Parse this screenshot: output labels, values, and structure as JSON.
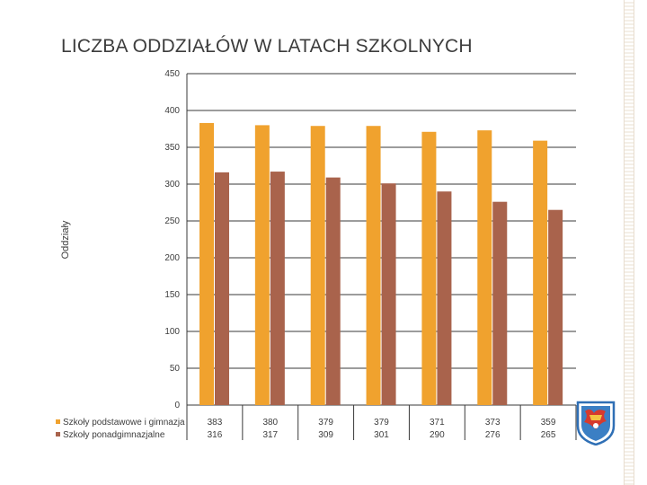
{
  "slide": {
    "title": "LICZBA ODDZIAŁÓW W LATACH SZKOLNYCH"
  },
  "chart_data": {
    "type": "bar",
    "title": "",
    "xlabel": "",
    "ylabel": "Oddziały",
    "ylim": [
      0,
      450
    ],
    "yticks": [
      0,
      50,
      100,
      150,
      200,
      250,
      300,
      350,
      400,
      450
    ],
    "categories": [
      "",
      "",
      "",
      "",
      "",
      "",
      ""
    ],
    "grid": true,
    "legend": "data-table-left",
    "series": [
      {
        "name": "Szkoły podstawowe i gimnazja",
        "color": "#f0a22e",
        "values": [
          383,
          380,
          379,
          379,
          371,
          373,
          359
        ]
      },
      {
        "name": "Szkoły ponadgimnazjalne",
        "color": "#a9634c",
        "values": [
          316,
          317,
          309,
          301,
          290,
          276,
          265
        ]
      }
    ]
  },
  "colors": {
    "grid": "#3a3a3a",
    "text": "#3d3d3d"
  },
  "icons": {
    "crest": "coat-of-arms-icon"
  }
}
